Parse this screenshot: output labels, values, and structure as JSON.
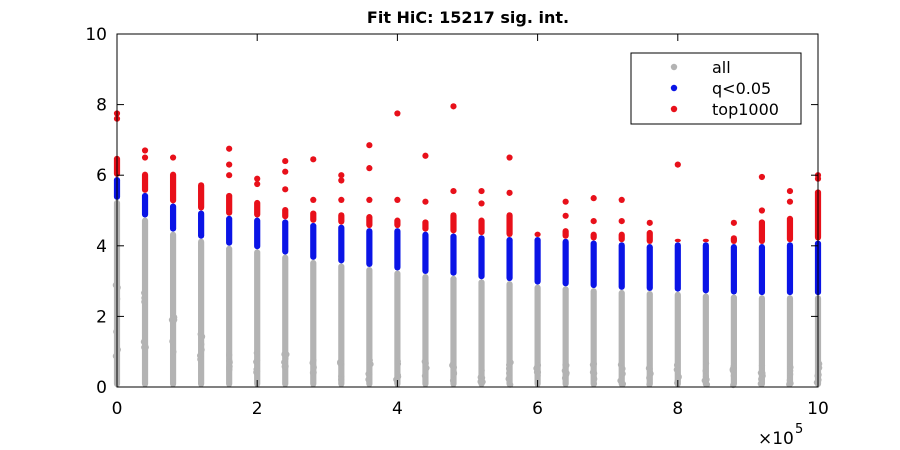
{
  "chart_data": {
    "type": "scatter",
    "title": "Fit HiC: 15217 sig. int.",
    "xlabel": "",
    "ylabel": "",
    "xlim": [
      0,
      1000000
    ],
    "ylim": [
      0,
      10
    ],
    "x_ticks": [
      0,
      200000,
      400000,
      600000,
      800000,
      1000000
    ],
    "x_tick_labels": [
      "0",
      "2",
      "4",
      "6",
      "8",
      "10"
    ],
    "x_exponent_label": "×10",
    "x_exponent_power": "5",
    "y_ticks": [
      0,
      2,
      4,
      6,
      8,
      10
    ],
    "y_tick_labels": [
      "0",
      "2",
      "4",
      "6",
      "8",
      "10"
    ],
    "grid": false,
    "legend_position": "top-right",
    "colors": {
      "all": "#b3b3b3",
      "q<0.05": "#0a14e6",
      "top1000": "#e8101a"
    },
    "series": [
      {
        "name": "all",
        "note": "each distance bin: values from 0 up to 'max' (clusters: 'dense_to')",
        "bins": [
          {
            "x": 0,
            "min": 0.85,
            "max": 5.3,
            "dense_to": 3.0
          },
          {
            "x": 40000,
            "min": 0.55,
            "max": 4.8,
            "dense_to": 2.7
          },
          {
            "x": 80000,
            "min": 0.55,
            "max": 4.4,
            "dense_to": 2.0
          },
          {
            "x": 120000,
            "min": 0.55,
            "max": 4.2,
            "dense_to": 1.5
          },
          {
            "x": 160000,
            "min": 0.45,
            "max": 4.0,
            "dense_to": 1.2
          },
          {
            "x": 200000,
            "min": 0.35,
            "max": 3.9,
            "dense_to": 1.0
          },
          {
            "x": 240000,
            "min": 0.3,
            "max": 3.75,
            "dense_to": 1.0
          },
          {
            "x": 280000,
            "min": 0.2,
            "max": 3.6,
            "dense_to": 0.9
          },
          {
            "x": 320000,
            "min": 0.2,
            "max": 3.5,
            "dense_to": 0.9
          },
          {
            "x": 360000,
            "min": 0.15,
            "max": 3.4,
            "dense_to": 0.8
          },
          {
            "x": 400000,
            "min": 0.1,
            "max": 3.3,
            "dense_to": 0.8
          },
          {
            "x": 440000,
            "min": 0.1,
            "max": 3.2,
            "dense_to": 0.8
          },
          {
            "x": 480000,
            "min": 0.1,
            "max": 3.15,
            "dense_to": 0.7
          },
          {
            "x": 520000,
            "min": 0.1,
            "max": 3.05,
            "dense_to": 0.7
          },
          {
            "x": 560000,
            "min": 0.05,
            "max": 3.0,
            "dense_to": 0.7
          },
          {
            "x": 600000,
            "min": 0.05,
            "max": 2.9,
            "dense_to": 0.7
          },
          {
            "x": 640000,
            "min": 0.05,
            "max": 2.85,
            "dense_to": 0.7
          },
          {
            "x": 680000,
            "min": 0.05,
            "max": 2.8,
            "dense_to": 0.7
          },
          {
            "x": 720000,
            "min": 0.05,
            "max": 2.75,
            "dense_to": 0.7
          },
          {
            "x": 760000,
            "min": 0.05,
            "max": 2.72,
            "dense_to": 0.7
          },
          {
            "x": 800000,
            "min": 0.05,
            "max": 2.7,
            "dense_to": 0.7
          },
          {
            "x": 840000,
            "min": 0.05,
            "max": 2.65,
            "dense_to": 0.7
          },
          {
            "x": 880000,
            "min": 0.05,
            "max": 2.62,
            "dense_to": 0.7
          },
          {
            "x": 920000,
            "min": 0.05,
            "max": 2.6,
            "dense_to": 0.7
          },
          {
            "x": 960000,
            "min": 0.05,
            "max": 2.6,
            "dense_to": 0.7
          },
          {
            "x": 1000000,
            "min": 0.05,
            "max": 2.6,
            "dense_to": 0.7
          }
        ]
      },
      {
        "name": "q<0.05",
        "note": "each distance bin: values from 'min' to 'max'",
        "bins": [
          {
            "x": 0,
            "min": 5.3,
            "max": 5.95
          },
          {
            "x": 40000,
            "min": 4.8,
            "max": 5.5
          },
          {
            "x": 80000,
            "min": 4.4,
            "max": 5.2
          },
          {
            "x": 120000,
            "min": 4.2,
            "max": 5.0
          },
          {
            "x": 160000,
            "min": 4.0,
            "max": 4.85
          },
          {
            "x": 200000,
            "min": 3.9,
            "max": 4.8
          },
          {
            "x": 240000,
            "min": 3.75,
            "max": 4.75
          },
          {
            "x": 280000,
            "min": 3.6,
            "max": 4.65
          },
          {
            "x": 320000,
            "min": 3.5,
            "max": 4.6
          },
          {
            "x": 360000,
            "min": 3.4,
            "max": 4.5
          },
          {
            "x": 400000,
            "min": 3.3,
            "max": 4.5
          },
          {
            "x": 440000,
            "min": 3.2,
            "max": 4.4
          },
          {
            "x": 480000,
            "min": 3.15,
            "max": 4.35
          },
          {
            "x": 520000,
            "min": 3.05,
            "max": 4.3
          },
          {
            "x": 560000,
            "min": 3.0,
            "max": 4.25
          },
          {
            "x": 600000,
            "min": 2.9,
            "max": 4.25
          },
          {
            "x": 640000,
            "min": 2.85,
            "max": 4.2
          },
          {
            "x": 680000,
            "min": 2.8,
            "max": 4.15
          },
          {
            "x": 720000,
            "min": 2.75,
            "max": 4.1
          },
          {
            "x": 760000,
            "min": 2.72,
            "max": 4.05
          },
          {
            "x": 800000,
            "min": 2.7,
            "max": 4.1
          },
          {
            "x": 840000,
            "min": 2.65,
            "max": 4.1
          },
          {
            "x": 880000,
            "min": 2.62,
            "max": 4.05
          },
          {
            "x": 920000,
            "min": 2.6,
            "max": 4.05
          },
          {
            "x": 960000,
            "min": 2.6,
            "max": 4.1
          },
          {
            "x": 1000000,
            "min": 2.6,
            "max": 4.15
          }
        ]
      },
      {
        "name": "top1000",
        "note": "each distance bin: dense band from 'min' to 'max' plus listed outlier points",
        "bins": [
          {
            "x": 0,
            "min": 5.95,
            "max": 6.55,
            "outliers": [
              7.6,
              7.75
            ]
          },
          {
            "x": 40000,
            "min": 5.5,
            "max": 6.1,
            "outliers": [
              6.5,
              6.7
            ]
          },
          {
            "x": 80000,
            "min": 5.2,
            "max": 6.1,
            "outliers": [
              6.5
            ]
          },
          {
            "x": 120000,
            "min": 5.0,
            "max": 5.8,
            "outliers": []
          },
          {
            "x": 160000,
            "min": 4.85,
            "max": 5.5,
            "outliers": [
              6.0,
              6.3,
              6.75
            ]
          },
          {
            "x": 200000,
            "min": 4.8,
            "max": 5.3,
            "outliers": [
              5.75,
              5.9
            ]
          },
          {
            "x": 240000,
            "min": 4.75,
            "max": 5.1,
            "outliers": [
              5.6,
              6.1,
              6.4
            ]
          },
          {
            "x": 280000,
            "min": 4.65,
            "max": 5.0,
            "outliers": [
              5.3,
              6.45
            ]
          },
          {
            "x": 320000,
            "min": 4.6,
            "max": 4.95,
            "outliers": [
              5.3,
              5.85,
              6.0
            ]
          },
          {
            "x": 360000,
            "min": 4.5,
            "max": 4.9,
            "outliers": [
              5.3,
              6.2,
              6.85
            ]
          },
          {
            "x": 400000,
            "min": 4.5,
            "max": 4.8,
            "outliers": [
              5.3,
              7.75
            ]
          },
          {
            "x": 440000,
            "min": 4.4,
            "max": 4.75,
            "outliers": [
              5.25,
              6.55
            ]
          },
          {
            "x": 480000,
            "min": 4.35,
            "max": 4.95,
            "outliers": [
              5.55,
              7.95
            ]
          },
          {
            "x": 520000,
            "min": 4.3,
            "max": 4.8,
            "outliers": [
              5.2,
              5.55
            ]
          },
          {
            "x": 560000,
            "min": 4.25,
            "max": 4.95,
            "outliers": [
              5.5,
              6.5
            ]
          },
          {
            "x": 600000,
            "min": 4.25,
            "max": 4.4,
            "outliers": []
          },
          {
            "x": 640000,
            "min": 4.2,
            "max": 4.5,
            "outliers": [
              4.85,
              5.25
            ]
          },
          {
            "x": 680000,
            "min": 4.15,
            "max": 4.4,
            "outliers": [
              4.7,
              5.35
            ]
          },
          {
            "x": 720000,
            "min": 4.1,
            "max": 4.4,
            "outliers": [
              4.7,
              5.3
            ]
          },
          {
            "x": 760000,
            "min": 4.05,
            "max": 4.45,
            "outliers": [
              4.65
            ]
          },
          {
            "x": 800000,
            "min": 4.1,
            "max": 4.2,
            "outliers": [
              6.3
            ]
          },
          {
            "x": 840000,
            "min": 4.1,
            "max": 4.2,
            "outliers": []
          },
          {
            "x": 880000,
            "min": 4.05,
            "max": 4.3,
            "outliers": [
              4.65
            ]
          },
          {
            "x": 920000,
            "min": 4.05,
            "max": 4.75,
            "outliers": [
              5.0,
              5.95
            ]
          },
          {
            "x": 960000,
            "min": 4.1,
            "max": 4.85,
            "outliers": [
              5.25,
              5.55
            ]
          },
          {
            "x": 1000000,
            "min": 4.15,
            "max": 5.6,
            "outliers": [
              5.9,
              6.0
            ]
          }
        ]
      }
    ]
  }
}
